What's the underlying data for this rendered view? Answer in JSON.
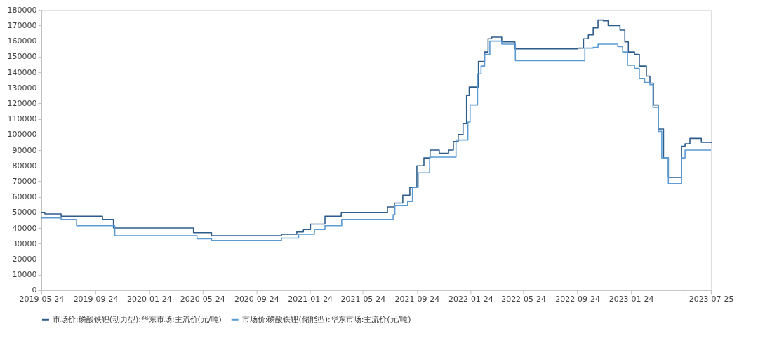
{
  "chart_data": {
    "type": "step",
    "xlim": [
      "2019-05-24",
      "2023-07-25"
    ],
    "xticks": [
      {
        "value": "2019-05-24",
        "label": "2019-05-24"
      },
      {
        "value": "2019-09-24",
        "label": "2019-09-24"
      },
      {
        "value": "2020-01-24",
        "label": "2020-01-24"
      },
      {
        "value": "2020-05-24",
        "label": "2020-05-24"
      },
      {
        "value": "2020-09-24",
        "label": "2020-09-24"
      },
      {
        "value": "2021-01-24",
        "label": "2021-01-24"
      },
      {
        "value": "2021-05-24",
        "label": "2021-05-24"
      },
      {
        "value": "2021-09-24",
        "label": "2021-09-24"
      },
      {
        "value": "2022-01-24",
        "label": "2022-01-24"
      },
      {
        "value": "2022-05-24",
        "label": "2022-05-24"
      },
      {
        "value": "2022-09-24",
        "label": "2022-09-24"
      },
      {
        "value": "2023-01-24",
        "label": "2023-01-24"
      },
      {
        "value": "2023-05-24",
        "label": null
      },
      {
        "value": "2023-07-25",
        "label": "2023-07-25"
      }
    ],
    "ylim": [
      0,
      180000
    ],
    "yticks": [
      0,
      10000,
      20000,
      30000,
      40000,
      50000,
      60000,
      70000,
      80000,
      90000,
      100000,
      110000,
      120000,
      130000,
      140000,
      150000,
      160000,
      170000,
      180000
    ],
    "grid": false,
    "legend": "bottom",
    "marker": "none",
    "line_style": "solid",
    "series": [
      {
        "name": "市场价:磷酸铁锂(动力型):华东市场:主流价(元/吨)",
        "color": "#2e5c8a",
        "x": [
          "2019-05-24",
          "2019-06-01",
          "2019-07-08",
          "2019-10-10",
          "2019-11-04",
          "2020-05-04",
          "2020-06-14",
          "2020-11-20",
          "2020-12-25",
          "2021-01-09",
          "2021-01-25",
          "2021-02-27",
          "2021-04-05",
          "2021-07-19",
          "2021-08-04",
          "2021-08-23",
          "2021-09-08",
          "2021-09-24",
          "2021-10-10",
          "2021-10-24",
          "2021-11-14",
          "2021-12-05",
          "2021-12-16",
          "2021-12-27",
          "2022-01-07",
          "2022-01-15",
          "2022-01-21",
          "2022-02-11",
          "2022-02-25",
          "2022-03-05",
          "2022-03-13",
          "2022-04-05",
          "2022-05-05",
          "2022-09-25",
          "2022-10-08",
          "2022-10-19",
          "2022-10-30",
          "2022-11-10",
          "2022-11-22",
          "2022-12-03",
          "2022-12-30",
          "2023-01-10",
          "2023-01-18",
          "2023-02-01",
          "2023-02-12",
          "2023-02-28",
          "2023-03-08",
          "2023-03-16",
          "2023-03-27",
          "2023-04-08",
          "2023-04-19",
          "2023-05-19",
          "2023-05-27",
          "2023-06-07",
          "2023-07-03",
          "2023-07-25"
        ],
        "values": [
          50000,
          49000,
          47500,
          45500,
          40000,
          37000,
          35000,
          36000,
          37500,
          39000,
          42500,
          47500,
          50000,
          53500,
          56000,
          61000,
          66000,
          80000,
          85000,
          90000,
          88000,
          90000,
          95500,
          100000,
          107000,
          125000,
          130500,
          147000,
          153000,
          161500,
          162500,
          159500,
          155000,
          155500,
          161500,
          164000,
          168500,
          173500,
          173000,
          170000,
          167000,
          159500,
          153000,
          151500,
          144000,
          137500,
          133000,
          119000,
          103500,
          85000,
          72500,
          92500,
          94000,
          97500,
          95000,
          94500
        ]
      },
      {
        "name": "市场价:磷酸铁锂(储能型):华东市场:主流价(元/吨)",
        "color": "#5b9bd5",
        "x": [
          "2019-05-24",
          "2019-07-08",
          "2019-08-12",
          "2019-11-07",
          "2020-05-12",
          "2020-06-14",
          "2020-11-20",
          "2020-12-29",
          "2021-02-03",
          "2021-02-27",
          "2021-04-06",
          "2021-08-01",
          "2021-08-05",
          "2021-09-03",
          "2021-09-14",
          "2021-09-27",
          "2021-10-23",
          "2021-12-22",
          "2022-01-18",
          "2022-01-23",
          "2022-02-09",
          "2022-02-17",
          "2022-02-25",
          "2022-03-09",
          "2022-04-05",
          "2022-05-06",
          "2022-10-11",
          "2022-10-30",
          "2022-11-10",
          "2022-12-25",
          "2023-01-05",
          "2023-01-16",
          "2023-02-01",
          "2023-02-12",
          "2023-02-24",
          "2023-03-08",
          "2023-03-15",
          "2023-03-27",
          "2023-04-04",
          "2023-04-19",
          "2023-05-19",
          "2023-05-27",
          "2023-07-25"
        ],
        "values": [
          46500,
          45500,
          41500,
          35000,
          33000,
          32000,
          33500,
          36000,
          39000,
          41500,
          45500,
          48500,
          54500,
          57000,
          66000,
          75500,
          85500,
          96500,
          108000,
          119000,
          139000,
          144000,
          151500,
          160000,
          158000,
          147500,
          155500,
          156000,
          158000,
          156500,
          153000,
          144500,
          142500,
          136000,
          133500,
          132000,
          117500,
          102000,
          85000,
          68500,
          85000,
          90000,
          90000
        ]
      }
    ]
  }
}
